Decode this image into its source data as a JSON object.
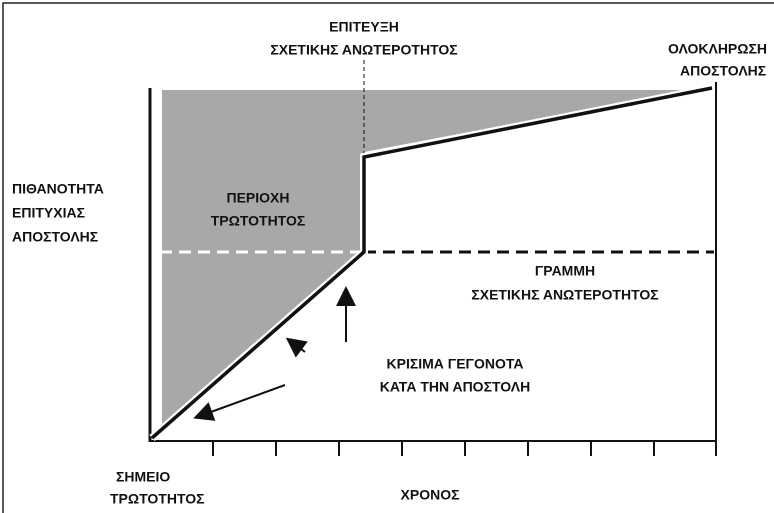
{
  "diagram": {
    "vertical_axis_label": [
      "ΠΙΘΑΝΟΤΗΤΑ",
      "ΕΠΙΤΥΧΙΑΣ",
      "ΑΠΟΣΤΟΛΗΣ"
    ],
    "horizontal_axis_label": "ΧΡΟΝΟΣ",
    "origin_label": [
      "ΣΗΜΕΙΟ",
      "ΤΡΩΤΟΤΗΤΟΣ"
    ],
    "superiority_point_label": [
      "ΕΠΙΤΕΥΞΗ",
      "ΣΧΕΤΙΚΗΣ ΑΝΩΤΕΡΟΤΗΤΟΣ"
    ],
    "completion_label": [
      "ΟΛΟΚΛΗΡΩΣΗ",
      "ΑΠΟΣΤΟΛΗΣ"
    ],
    "vulnerability_area_label": [
      "ΠΕΡΙΟΧΗ",
      "ΤΡΩΤΟΤΗΤΟΣ"
    ],
    "superiority_line_label": [
      "ΓΡΑΜΜΗ",
      "ΣΧΕΤΙΚΗΣ ΑΝΩΤΕΡΟΤΗΤΟΣ"
    ],
    "critical_events_label": [
      "ΚΡΙΣΙΜΑ ΓΕΓΟΝΟΤΑ",
      "ΚΑΤΑ ΤΗΝ ΑΠΟΣΤΟΛΗ"
    ]
  }
}
